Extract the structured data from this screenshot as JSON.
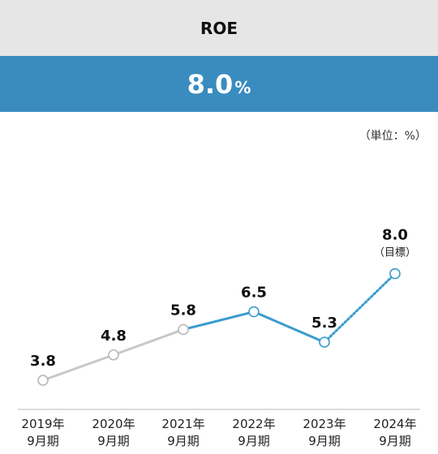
{
  "title": "ROE",
  "headline": {
    "value": "8.0",
    "unit": "%"
  },
  "unit_note": "（単位：%）",
  "colors": {
    "past": "#c8c8c8",
    "actual": "#3a9ccf",
    "header_blue": "#3a8cbf",
    "header_gray": "#e6e6e6"
  },
  "chart_data": {
    "type": "line",
    "categories": [
      [
        "2019年",
        "9月期"
      ],
      [
        "2020年",
        "9月期"
      ],
      [
        "2021年",
        "9月期"
      ],
      [
        "2022年",
        "9月期"
      ],
      [
        "2023年",
        "9月期"
      ],
      [
        "2024年",
        "9月期"
      ]
    ],
    "values": [
      3.8,
      4.8,
      5.8,
      6.5,
      5.3,
      8.0
    ],
    "value_labels": [
      "3.8",
      "4.8",
      "5.8",
      "6.5",
      "5.3",
      "8.0"
    ],
    "target_note": "（目標）",
    "segments": [
      {
        "from": 0,
        "to": 2,
        "style": "solid",
        "color": "gray"
      },
      {
        "from": 2,
        "to": 4,
        "style": "solid",
        "color": "blue"
      },
      {
        "from": 4,
        "to": 5,
        "style": "dotted",
        "color": "blue"
      }
    ],
    "grid": false,
    "legend": "none"
  }
}
